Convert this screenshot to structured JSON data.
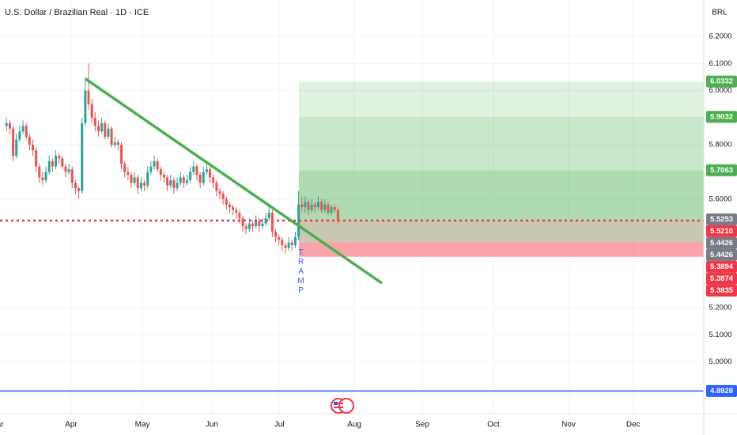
{
  "chart_data": {
    "type": "candlestick",
    "title": "U.S. Dollar / Brazilian Real · 1D · ICE",
    "currency": "BRL",
    "xlim": [
      -1,
      213.5
    ],
    "ylim": [
      4.818,
      6.334
    ],
    "xticks": [
      {
        "value": -2,
        "label": "Mar"
      },
      {
        "value": 20.7,
        "label": "Apr"
      },
      {
        "value": 42.4,
        "label": "May"
      },
      {
        "value": 63.6,
        "label": "Jun"
      },
      {
        "value": 84.1,
        "label": "Jul"
      },
      {
        "value": 107,
        "label": "Aug"
      },
      {
        "value": 127.7,
        "label": "Sep"
      },
      {
        "value": 149.4,
        "label": "Oct"
      },
      {
        "value": 172.3,
        "label": "Nov"
      },
      {
        "value": 192,
        "label": "Dec"
      }
    ],
    "yticks": [
      {
        "value": 6.2,
        "label": "6.2000"
      },
      {
        "value": 6.1,
        "label": "6.1000"
      },
      {
        "value": 6.0,
        "label": "6.0000"
      },
      {
        "value": 5.8,
        "label": "5.8000"
      },
      {
        "value": 5.6,
        "label": "5.6000"
      },
      {
        "value": 5.2,
        "label": "5.2000"
      },
      {
        "value": 5.1,
        "label": "5.1000"
      },
      {
        "value": 5.0,
        "label": "5.0000"
      }
    ],
    "grid": true,
    "up_color": "#26a69a",
    "down_color": "#ef5350",
    "open": [
      5.87,
      5.88,
      5.86,
      5.76,
      5.82,
      5.85,
      5.87,
      5.83,
      5.8,
      5.78,
      5.72,
      5.68,
      5.67,
      5.7,
      5.74,
      5.72,
      5.76,
      5.75,
      5.72,
      5.7,
      5.71,
      5.66,
      5.64,
      5.63,
      5.88,
      6.0,
      5.95,
      5.9,
      5.87,
      5.85,
      5.88,
      5.83,
      5.86,
      5.8,
      5.81,
      5.8,
      5.73,
      5.7,
      5.69,
      5.66,
      5.68,
      5.64,
      5.66,
      5.65,
      5.7,
      5.72,
      5.74,
      5.71,
      5.69,
      5.68,
      5.65,
      5.67,
      5.64,
      5.66,
      5.68,
      5.66,
      5.67,
      5.7,
      5.72,
      5.69,
      5.66,
      5.7,
      5.71,
      5.68,
      5.66,
      5.63,
      5.62,
      5.6,
      5.58,
      5.57,
      5.56,
      5.55,
      5.53,
      5.5,
      5.49,
      5.51,
      5.5,
      5.52,
      5.5,
      5.51,
      5.53,
      5.55,
      5.48,
      5.46,
      5.45,
      5.43,
      5.42,
      5.44,
      5.43,
      5.46,
      5.58,
      5.57,
      5.59,
      5.56,
      5.58,
      5.57,
      5.59,
      5.56,
      5.58,
      5.55,
      5.57,
      5.56
    ],
    "high": [
      5.9,
      5.89,
      5.87,
      5.84,
      5.87,
      5.89,
      5.88,
      5.84,
      5.82,
      5.79,
      5.73,
      5.7,
      5.72,
      5.76,
      5.75,
      5.78,
      5.77,
      5.76,
      5.73,
      5.73,
      5.72,
      5.67,
      5.65,
      5.9,
      6.05,
      6.1,
      5.97,
      5.92,
      5.89,
      5.9,
      5.89,
      5.88,
      5.87,
      5.83,
      5.82,
      5.81,
      5.74,
      5.72,
      5.7,
      5.7,
      5.69,
      5.68,
      5.67,
      5.72,
      5.74,
      5.76,
      5.75,
      5.72,
      5.7,
      5.69,
      5.69,
      5.68,
      5.68,
      5.7,
      5.69,
      5.69,
      5.72,
      5.74,
      5.73,
      5.7,
      5.72,
      5.73,
      5.72,
      5.69,
      5.67,
      5.64,
      5.63,
      5.61,
      5.59,
      5.58,
      5.57,
      5.56,
      5.54,
      5.51,
      5.53,
      5.52,
      5.54,
      5.53,
      5.53,
      5.55,
      5.57,
      5.56,
      5.49,
      5.47,
      5.46,
      5.44,
      5.46,
      5.45,
      5.48,
      5.63,
      5.61,
      5.61,
      5.6,
      5.6,
      5.59,
      5.61,
      5.6,
      5.6,
      5.59,
      5.58,
      5.58,
      5.57
    ],
    "low": [
      5.85,
      5.84,
      5.74,
      5.75,
      5.81,
      5.84,
      5.82,
      5.78,
      5.76,
      5.7,
      5.66,
      5.65,
      5.66,
      5.69,
      5.7,
      5.71,
      5.73,
      5.71,
      5.68,
      5.69,
      5.64,
      5.62,
      5.6,
      5.62,
      5.87,
      5.93,
      5.88,
      5.85,
      5.83,
      5.84,
      5.82,
      5.82,
      5.79,
      5.79,
      5.78,
      5.71,
      5.68,
      5.67,
      5.64,
      5.65,
      5.62,
      5.63,
      5.63,
      5.64,
      5.69,
      5.71,
      5.7,
      5.67,
      5.66,
      5.63,
      5.64,
      5.62,
      5.63,
      5.65,
      5.64,
      5.65,
      5.66,
      5.69,
      5.67,
      5.64,
      5.65,
      5.69,
      5.66,
      5.64,
      5.61,
      5.6,
      5.58,
      5.56,
      5.55,
      5.54,
      5.53,
      5.51,
      5.48,
      5.47,
      5.48,
      5.48,
      5.49,
      5.48,
      5.49,
      5.5,
      5.52,
      5.46,
      5.44,
      5.43,
      5.41,
      5.4,
      5.41,
      5.41,
      5.42,
      5.45,
      5.55,
      5.55,
      5.54,
      5.55,
      5.55,
      5.56,
      5.55,
      5.55,
      5.54,
      5.54,
      5.55,
      5.51
    ],
    "close": [
      5.88,
      5.86,
      5.76,
      5.82,
      5.85,
      5.87,
      5.83,
      5.8,
      5.78,
      5.72,
      5.68,
      5.67,
      5.7,
      5.74,
      5.72,
      5.76,
      5.75,
      5.72,
      5.7,
      5.71,
      5.66,
      5.64,
      5.63,
      5.88,
      6.0,
      5.95,
      5.9,
      5.87,
      5.85,
      5.88,
      5.83,
      5.86,
      5.8,
      5.81,
      5.8,
      5.73,
      5.7,
      5.69,
      5.66,
      5.68,
      5.64,
      5.66,
      5.65,
      5.7,
      5.72,
      5.74,
      5.71,
      5.69,
      5.68,
      5.65,
      5.67,
      5.64,
      5.66,
      5.68,
      5.66,
      5.67,
      5.7,
      5.72,
      5.69,
      5.66,
      5.7,
      5.71,
      5.68,
      5.66,
      5.63,
      5.62,
      5.6,
      5.58,
      5.57,
      5.56,
      5.55,
      5.53,
      5.5,
      5.49,
      5.51,
      5.5,
      5.52,
      5.5,
      5.51,
      5.53,
      5.55,
      5.48,
      5.46,
      5.45,
      5.43,
      5.42,
      5.44,
      5.43,
      5.46,
      5.58,
      5.57,
      5.59,
      5.56,
      5.58,
      5.57,
      5.59,
      5.56,
      5.58,
      5.55,
      5.57,
      5.56,
      5.52
    ],
    "zones": [
      {
        "x": [
          90.1,
          213.5
        ],
        "from": 5.9032,
        "to": 6.0332,
        "color": "#4caf50",
        "opacity": 0.18
      },
      {
        "x": [
          90.1,
          213.5
        ],
        "from": 5.7063,
        "to": 5.9032,
        "color": "#4caf50",
        "opacity": 0.3
      },
      {
        "x": [
          90.1,
          213.5
        ],
        "from": 5.5253,
        "to": 5.7063,
        "color": "#4caf50",
        "opacity": 0.45
      },
      {
        "x": [
          90.1,
          213.5
        ],
        "from": 5.4426,
        "to": 5.5253,
        "color": "#9a9a70",
        "opacity": 0.55
      },
      {
        "x": [
          90.1,
          213.5
        ],
        "from": 5.3874,
        "to": 5.4426,
        "color": "#f23645",
        "opacity": 0.45
      }
    ],
    "hlines": [
      {
        "value": 5.521,
        "color": "#f23645",
        "dash": "3 4"
      },
      {
        "value": 4.8928,
        "color": "#2962ff",
        "dash": ""
      }
    ],
    "trendline": {
      "x": [
        25.1,
        115.4
      ],
      "y": [
        6.043,
        5.29
      ],
      "color": "#4caf50"
    },
    "annotation": {
      "text": "TRAMP",
      "x": 90.6,
      "y": 5.42
    },
    "price_labels": [
      {
        "value": 6.0332,
        "label": "6.0332",
        "color": "#4caf50"
      },
      {
        "value": 5.9032,
        "label": "5.9032",
        "color": "#4caf50"
      },
      {
        "value": 5.7063,
        "label": "5.7063",
        "color": "#4caf50"
      },
      {
        "value": 5.5253,
        "label": "5.5253",
        "color": "#787b86"
      },
      {
        "value": 5.521,
        "label": "5.5210",
        "color": "#f23645"
      },
      {
        "value": 5.4426,
        "label": "5.4426",
        "color": "#787b86"
      },
      {
        "value": 5.4426,
        "label": "5.4426",
        "color": "#787b86"
      },
      {
        "value": 5.3894,
        "label": "5.3894",
        "color": "#f23645"
      },
      {
        "value": 5.3874,
        "label": "5.3874",
        "color": "#f23645"
      },
      {
        "value": 5.3835,
        "label": "5.3835",
        "color": "#f23645"
      },
      {
        "value": 4.8928,
        "label": "4.8928",
        "color": "#2962ff"
      }
    ]
  }
}
